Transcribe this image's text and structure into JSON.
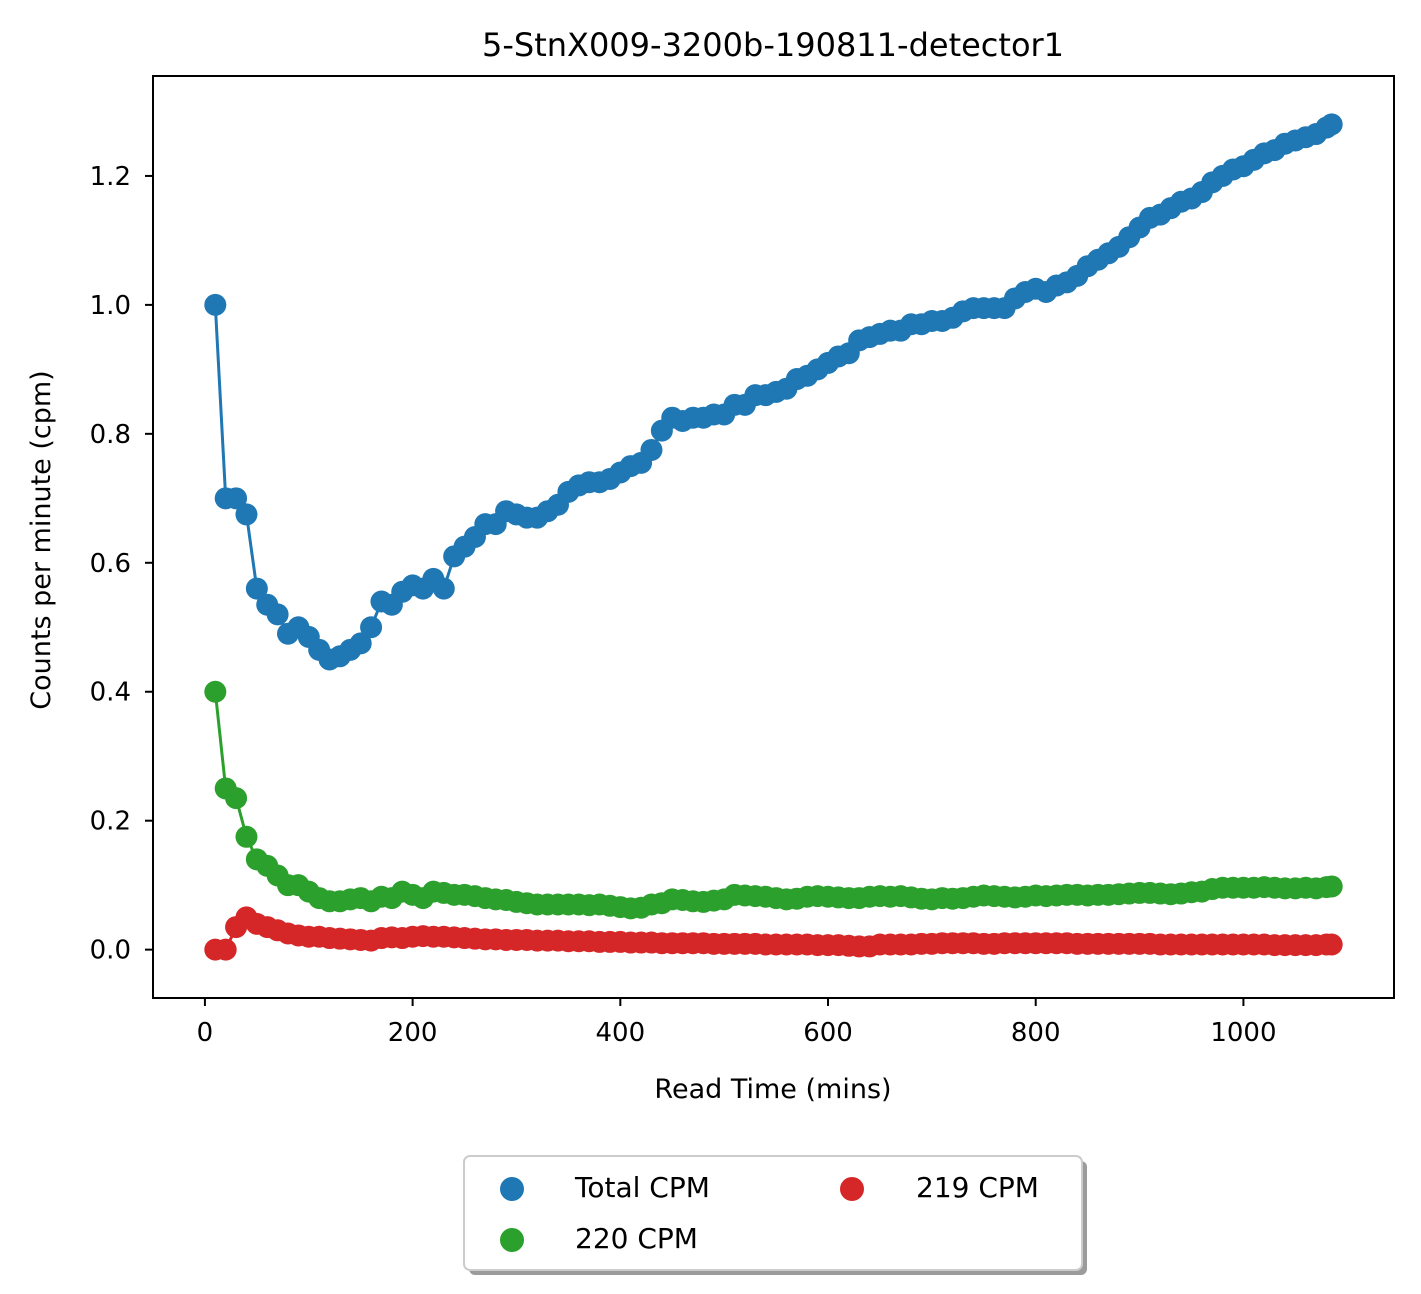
{
  "chart_data": {
    "type": "line",
    "title": "5-StnX009-3200b-190811-detector1",
    "xlabel": "Read Time (mins)",
    "ylabel": "Counts per minute (cpm)",
    "xlim": [
      -50,
      1145
    ],
    "ylim": [
      -0.075,
      1.355
    ],
    "xticks": [
      0,
      200,
      400,
      600,
      800,
      1000
    ],
    "yticks": [
      0.0,
      0.2,
      0.4,
      0.6,
      0.8,
      1.0,
      1.2
    ],
    "xtick_labels": [
      "0",
      "200",
      "400",
      "600",
      "800",
      "1000"
    ],
    "ytick_labels": [
      "0.0",
      "0.2",
      "0.4",
      "0.6",
      "0.8",
      "1.0",
      "1.2"
    ],
    "grid": false,
    "legend": {
      "placement": "below plot, centered",
      "columns": 2
    },
    "series": [
      {
        "name": "Total CPM",
        "color": "#1f77b4",
        "x": [
          10,
          20,
          30,
          40,
          50,
          60,
          70,
          80,
          90,
          100,
          110,
          120,
          130,
          140,
          150,
          160,
          170,
          180,
          190,
          200,
          210,
          220,
          230,
          240,
          250,
          260,
          270,
          280,
          290,
          300,
          310,
          320,
          330,
          340,
          350,
          360,
          370,
          380,
          390,
          400,
          410,
          420,
          430,
          440,
          450,
          460,
          470,
          480,
          490,
          500,
          510,
          520,
          530,
          540,
          550,
          560,
          570,
          580,
          590,
          600,
          610,
          620,
          630,
          640,
          650,
          660,
          670,
          680,
          690,
          700,
          710,
          720,
          730,
          740,
          750,
          760,
          770,
          780,
          790,
          800,
          810,
          820,
          830,
          840,
          850,
          860,
          870,
          880,
          890,
          900,
          910,
          920,
          930,
          940,
          950,
          960,
          970,
          980,
          990,
          1000,
          1010,
          1020,
          1030,
          1040,
          1050,
          1060,
          1070,
          1080,
          1085
        ],
        "values": [
          1.0,
          0.7,
          0.7,
          0.675,
          0.56,
          0.535,
          0.52,
          0.49,
          0.5,
          0.485,
          0.465,
          0.45,
          0.455,
          0.465,
          0.475,
          0.5,
          0.54,
          0.535,
          0.555,
          0.565,
          0.56,
          0.575,
          0.56,
          0.61,
          0.625,
          0.64,
          0.66,
          0.66,
          0.68,
          0.675,
          0.67,
          0.67,
          0.68,
          0.69,
          0.71,
          0.72,
          0.725,
          0.725,
          0.73,
          0.74,
          0.75,
          0.755,
          0.775,
          0.805,
          0.825,
          0.82,
          0.825,
          0.825,
          0.83,
          0.83,
          0.845,
          0.845,
          0.86,
          0.86,
          0.865,
          0.87,
          0.885,
          0.89,
          0.9,
          0.91,
          0.92,
          0.925,
          0.945,
          0.95,
          0.955,
          0.96,
          0.96,
          0.97,
          0.97,
          0.975,
          0.975,
          0.98,
          0.99,
          0.995,
          0.995,
          0.995,
          0.995,
          1.01,
          1.02,
          1.025,
          1.02,
          1.03,
          1.035,
          1.045,
          1.06,
          1.07,
          1.08,
          1.09,
          1.105,
          1.12,
          1.135,
          1.14,
          1.15,
          1.16,
          1.165,
          1.175,
          1.19,
          1.2,
          1.21,
          1.215,
          1.225,
          1.235,
          1.24,
          1.25,
          1.255,
          1.26,
          1.265,
          1.275,
          1.28
        ]
      },
      {
        "name": "220 CPM",
        "color": "#2ca02c",
        "x": [
          10,
          20,
          30,
          40,
          50,
          60,
          70,
          80,
          90,
          100,
          110,
          120,
          130,
          140,
          150,
          160,
          170,
          180,
          190,
          200,
          210,
          220,
          230,
          240,
          250,
          260,
          270,
          280,
          290,
          300,
          310,
          320,
          330,
          340,
          350,
          360,
          370,
          380,
          390,
          400,
          410,
          420,
          430,
          440,
          450,
          460,
          470,
          480,
          490,
          500,
          510,
          520,
          530,
          540,
          550,
          560,
          570,
          580,
          590,
          600,
          610,
          620,
          630,
          640,
          650,
          660,
          670,
          680,
          690,
          700,
          710,
          720,
          730,
          740,
          750,
          760,
          770,
          780,
          790,
          800,
          810,
          820,
          830,
          840,
          850,
          860,
          870,
          880,
          890,
          900,
          910,
          920,
          930,
          940,
          950,
          960,
          970,
          980,
          990,
          1000,
          1010,
          1020,
          1030,
          1040,
          1050,
          1060,
          1070,
          1080,
          1085
        ],
        "values": [
          0.4,
          0.25,
          0.235,
          0.175,
          0.14,
          0.13,
          0.115,
          0.1,
          0.1,
          0.09,
          0.08,
          0.075,
          0.075,
          0.078,
          0.08,
          0.075,
          0.082,
          0.08,
          0.09,
          0.085,
          0.08,
          0.09,
          0.088,
          0.085,
          0.085,
          0.083,
          0.08,
          0.078,
          0.077,
          0.074,
          0.072,
          0.07,
          0.07,
          0.07,
          0.07,
          0.07,
          0.069,
          0.07,
          0.068,
          0.066,
          0.064,
          0.065,
          0.07,
          0.072,
          0.078,
          0.077,
          0.075,
          0.074,
          0.076,
          0.078,
          0.085,
          0.084,
          0.083,
          0.082,
          0.08,
          0.078,
          0.079,
          0.082,
          0.083,
          0.082,
          0.081,
          0.08,
          0.08,
          0.082,
          0.083,
          0.082,
          0.083,
          0.081,
          0.079,
          0.078,
          0.08,
          0.079,
          0.08,
          0.082,
          0.084,
          0.083,
          0.082,
          0.081,
          0.082,
          0.084,
          0.083,
          0.084,
          0.085,
          0.085,
          0.084,
          0.085,
          0.085,
          0.086,
          0.087,
          0.088,
          0.088,
          0.087,
          0.086,
          0.087,
          0.089,
          0.09,
          0.094,
          0.096,
          0.096,
          0.096,
          0.096,
          0.097,
          0.096,
          0.095,
          0.095,
          0.096,
          0.095,
          0.097,
          0.098
        ]
      },
      {
        "name": "219 CPM",
        "color": "#d62728",
        "x": [
          10,
          20,
          30,
          40,
          50,
          60,
          70,
          80,
          90,
          100,
          110,
          120,
          130,
          140,
          150,
          160,
          170,
          180,
          190,
          200,
          210,
          220,
          230,
          240,
          250,
          260,
          270,
          280,
          290,
          300,
          310,
          320,
          330,
          340,
          350,
          360,
          370,
          380,
          390,
          400,
          410,
          420,
          430,
          440,
          450,
          460,
          470,
          480,
          490,
          500,
          510,
          520,
          530,
          540,
          550,
          560,
          570,
          580,
          590,
          600,
          610,
          620,
          630,
          640,
          650,
          660,
          670,
          680,
          690,
          700,
          710,
          720,
          730,
          740,
          750,
          760,
          770,
          780,
          790,
          800,
          810,
          820,
          830,
          840,
          850,
          860,
          870,
          880,
          890,
          900,
          910,
          920,
          930,
          940,
          950,
          960,
          970,
          980,
          990,
          1000,
          1010,
          1020,
          1030,
          1040,
          1050,
          1060,
          1070,
          1080,
          1085
        ],
        "values": [
          0.0,
          0.0,
          0.035,
          0.05,
          0.04,
          0.035,
          0.03,
          0.025,
          0.022,
          0.02,
          0.02,
          0.018,
          0.017,
          0.016,
          0.015,
          0.014,
          0.018,
          0.019,
          0.018,
          0.02,
          0.021,
          0.02,
          0.02,
          0.019,
          0.018,
          0.017,
          0.016,
          0.016,
          0.015,
          0.015,
          0.015,
          0.014,
          0.014,
          0.014,
          0.013,
          0.013,
          0.013,
          0.012,
          0.012,
          0.012,
          0.011,
          0.011,
          0.011,
          0.01,
          0.01,
          0.01,
          0.01,
          0.01,
          0.009,
          0.009,
          0.009,
          0.009,
          0.009,
          0.008,
          0.008,
          0.008,
          0.008,
          0.008,
          0.007,
          0.007,
          0.007,
          0.006,
          0.005,
          0.005,
          0.008,
          0.008,
          0.008,
          0.008,
          0.009,
          0.009,
          0.01,
          0.01,
          0.01,
          0.01,
          0.009,
          0.009,
          0.01,
          0.01,
          0.01,
          0.01,
          0.01,
          0.01,
          0.01,
          0.009,
          0.009,
          0.009,
          0.009,
          0.009,
          0.009,
          0.009,
          0.009,
          0.008,
          0.008,
          0.008,
          0.008,
          0.008,
          0.008,
          0.008,
          0.008,
          0.008,
          0.008,
          0.008,
          0.007,
          0.007,
          0.007,
          0.007,
          0.007,
          0.008,
          0.008
        ]
      }
    ]
  }
}
